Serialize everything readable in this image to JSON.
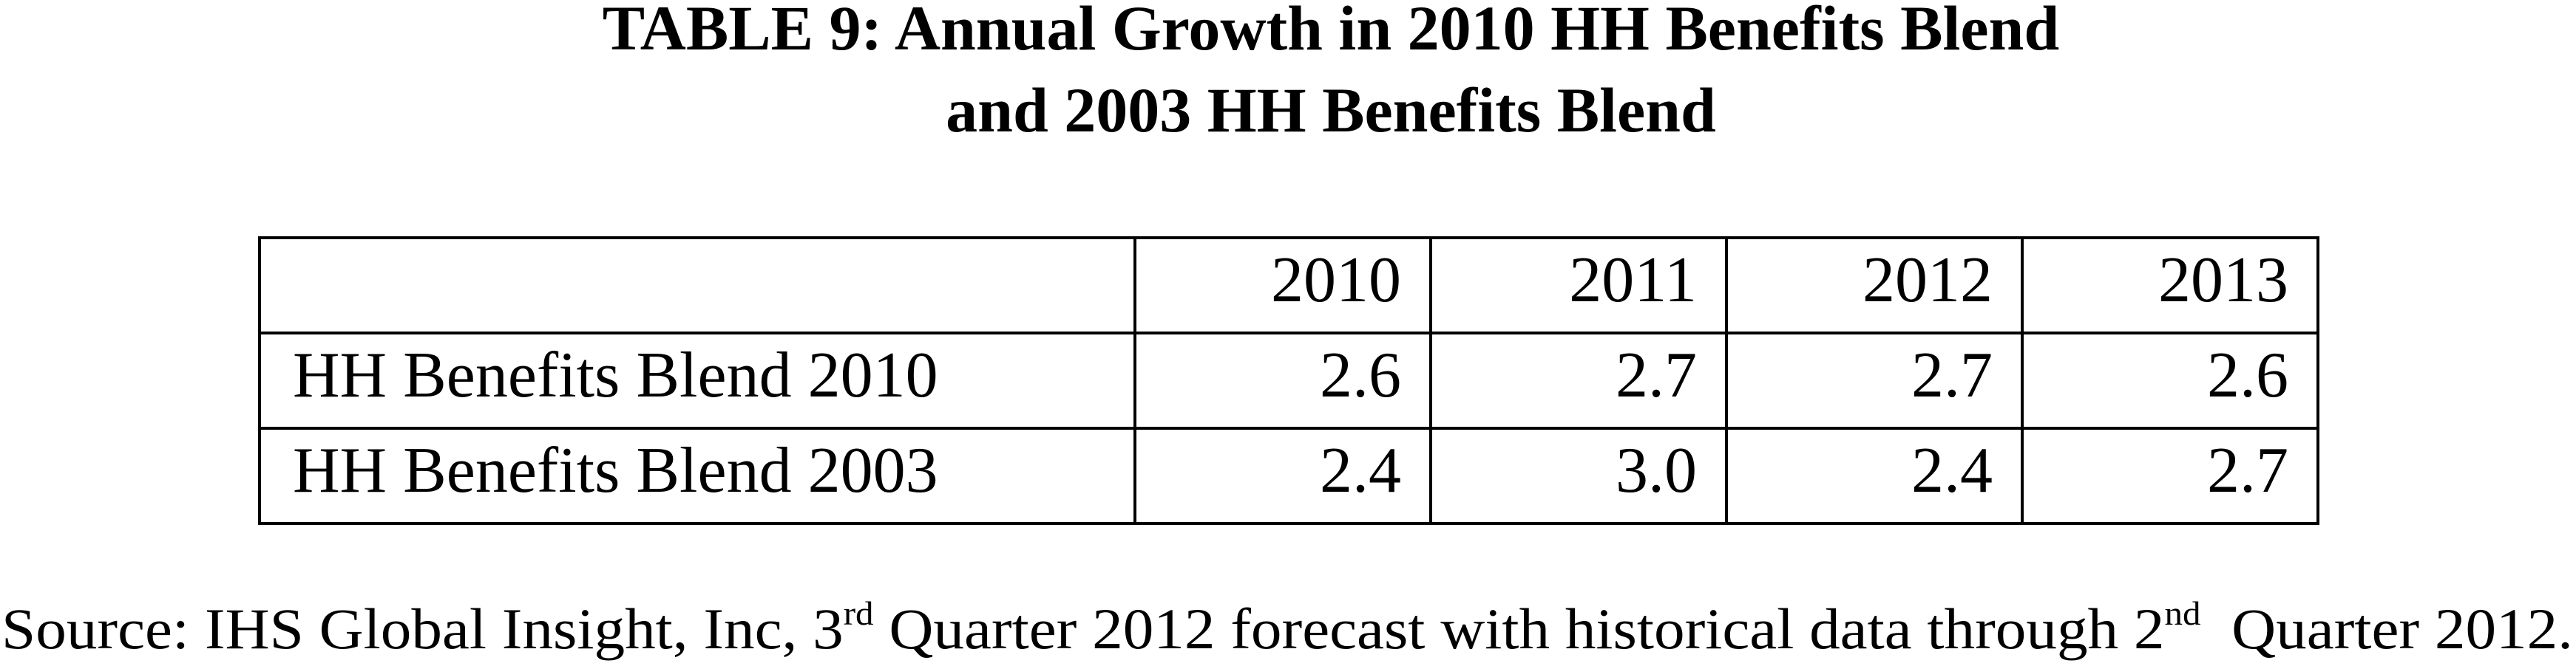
{
  "title": {
    "lines": [
      "TABLE 9: Annual Growth in 2010 HH Benefits Blend",
      "and 2003 HH Benefits Blend"
    ]
  },
  "table": {
    "header": [
      "2010",
      "2011",
      "2012",
      "2013"
    ],
    "rows": [
      [
        "HH Benefits Blend 2010",
        "2.6",
        "2.7",
        "2.7",
        "2.6"
      ],
      [
        "HH Benefits Blend 2003",
        "2.4",
        "3.0",
        "2.4",
        "2.7"
      ]
    ]
  },
  "source": {
    "parts": [
      "Source: IHS Global Insight, Inc, 3",
      "rd",
      " Quarter 2012 forecast with historical data through 2",
      "nd",
      "  Quarter 2012."
    ]
  }
}
